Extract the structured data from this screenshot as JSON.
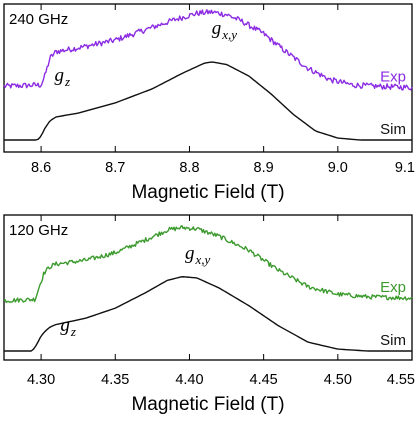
{
  "chart_data": [
    {
      "type": "line",
      "panel_label": "240 GHz",
      "xlabel": "Magnetic Field (T)",
      "xlim": [
        8.55,
        9.1
      ],
      "xticks": [
        8.6,
        8.7,
        8.8,
        8.9,
        9.0,
        9.1
      ],
      "xtick_labels": [
        "8.6",
        "8.7",
        "8.8",
        "8.9",
        "9.0",
        "9.1"
      ],
      "annotations": [
        {
          "id": "gz",
          "symbol": "g",
          "subscript": "z",
          "x": 8.618,
          "rel_y": 0.46
        },
        {
          "id": "gxy",
          "symbol": "g",
          "subscript": "x,y",
          "x": 8.83,
          "rel_y": 0.83
        }
      ],
      "series": [
        {
          "name": "Exp",
          "color": "#8b2be2",
          "noise": 0.022,
          "x": [
            8.55,
            8.6,
            8.605,
            8.612,
            8.62,
            8.65,
            8.7,
            8.74,
            8.78,
            8.81,
            8.83,
            8.85,
            8.87,
            8.9,
            8.93,
            8.96,
            8.99,
            9.02,
            9.05,
            9.1
          ],
          "y": [
            0.42,
            0.43,
            0.5,
            0.64,
            0.69,
            0.72,
            0.78,
            0.86,
            0.94,
            0.99,
            1.0,
            0.98,
            0.93,
            0.83,
            0.69,
            0.56,
            0.47,
            0.43,
            0.42,
            0.41
          ]
        },
        {
          "name": "Sim",
          "color": "#111111",
          "noise": 0,
          "x": [
            8.55,
            8.595,
            8.6,
            8.605,
            8.612,
            8.62,
            8.65,
            8.7,
            8.75,
            8.79,
            8.82,
            8.83,
            8.85,
            8.88,
            8.91,
            8.94,
            8.97,
            9.0,
            9.03,
            9.06,
            9.1
          ],
          "y": [
            0.0,
            0.0,
            0.03,
            0.09,
            0.15,
            0.18,
            0.21,
            0.29,
            0.4,
            0.52,
            0.6,
            0.61,
            0.59,
            0.5,
            0.36,
            0.2,
            0.07,
            0.015,
            0.0,
            0.0,
            0.0
          ]
        }
      ]
    },
    {
      "type": "line",
      "panel_label": "120 GHz",
      "xlabel": "Magnetic Field (T)",
      "xlim": [
        4.275,
        4.55
      ],
      "xticks": [
        4.3,
        4.35,
        4.4,
        4.45,
        4.5,
        4.55
      ],
      "xtick_labels": [
        "4.30",
        "4.35",
        "4.40",
        "4.45",
        "4.50",
        "4.55"
      ],
      "annotations": [
        {
          "id": "gz",
          "symbol": "g",
          "subscript": "z",
          "x": 4.313,
          "rel_y": 0.16
        },
        {
          "id": "gxy",
          "symbol": "g",
          "subscript": "x,y",
          "x": 4.397,
          "rel_y": 0.73
        }
      ],
      "series": [
        {
          "name": "Exp",
          "color": "#3c9a2e",
          "noise": 0.018,
          "x": [
            4.275,
            4.296,
            4.299,
            4.302,
            4.306,
            4.31,
            4.33,
            4.35,
            4.37,
            4.385,
            4.395,
            4.405,
            4.42,
            4.44,
            4.46,
            4.48,
            4.5,
            4.52,
            4.55
          ],
          "y": [
            0.4,
            0.41,
            0.52,
            0.62,
            0.67,
            0.69,
            0.72,
            0.78,
            0.88,
            0.96,
            0.98,
            0.97,
            0.91,
            0.8,
            0.64,
            0.51,
            0.45,
            0.43,
            0.42
          ]
        },
        {
          "name": "Sim",
          "color": "#111111",
          "noise": 0,
          "x": [
            4.275,
            4.294,
            4.297,
            4.3,
            4.303,
            4.306,
            4.31,
            4.33,
            4.35,
            4.37,
            4.385,
            4.395,
            4.405,
            4.42,
            4.44,
            4.46,
            4.48,
            4.5,
            4.52,
            4.55
          ],
          "y": [
            0.0,
            0.0,
            0.05,
            0.12,
            0.16,
            0.19,
            0.21,
            0.26,
            0.34,
            0.46,
            0.56,
            0.59,
            0.58,
            0.5,
            0.36,
            0.2,
            0.07,
            0.015,
            0.0,
            0.0
          ]
        }
      ]
    }
  ]
}
